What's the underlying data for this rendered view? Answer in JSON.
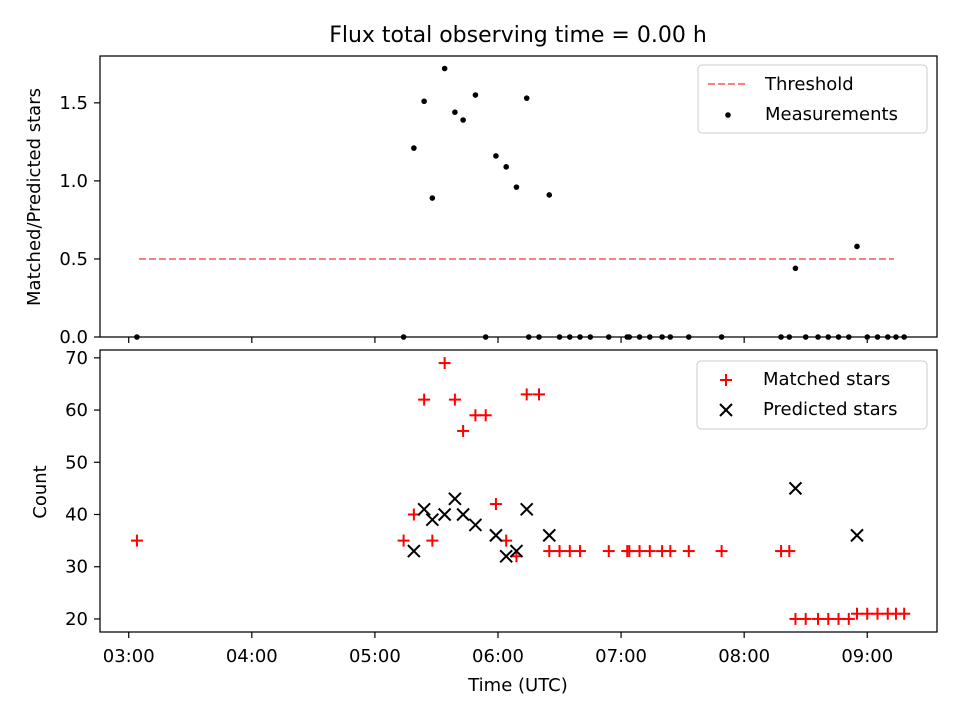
{
  "chart_data": [
    {
      "type": "scatter",
      "title": "Flux total observing time = 0.00 h",
      "ylabel": "Matched/Predicted stars",
      "xlim": [
        "02:46",
        "09:34"
      ],
      "ylim": [
        0,
        1.8
      ],
      "yticks": [
        0.0,
        0.5,
        1.0,
        1.5
      ],
      "ytick_labels": [
        "0.0",
        "0.5",
        "1.0",
        "1.5"
      ],
      "legend_position": "top-right",
      "series": [
        {
          "name": "Threshold",
          "kind": "line",
          "style": "dashed",
          "color": "#ff7f7f",
          "x": [
            "03:05",
            "09:13"
          ],
          "y": [
            0.5,
            0.5
          ]
        },
        {
          "name": "Measurements",
          "kind": "scatter",
          "color": "#000000",
          "marker": "dot",
          "x": [
            "03:04",
            "05:14",
            "05:19",
            "05:24",
            "05:28",
            "05:34",
            "05:39",
            "05:43",
            "05:49",
            "05:54",
            "05:59",
            "06:04",
            "06:09",
            "06:14",
            "06:15",
            "06:20",
            "06:25",
            "06:30",
            "06:35",
            "06:40",
            "06:45",
            "06:54",
            "07:03",
            "07:04",
            "07:09",
            "07:14",
            "07:20",
            "07:24",
            "07:33",
            "07:49",
            "08:18",
            "08:22",
            "08:25",
            "08:30",
            "08:36",
            "08:41",
            "08:46",
            "08:51",
            "08:55",
            "09:00",
            "09:05",
            "09:10",
            "09:14",
            "09:18"
          ],
          "y": [
            0,
            0,
            1.21,
            1.51,
            0.89,
            1.72,
            1.44,
            1.39,
            1.55,
            0,
            1.16,
            1.09,
            0.96,
            1.53,
            0,
            0,
            0.91,
            0,
            0,
            0,
            0,
            0,
            0,
            0,
            0,
            0,
            0,
            0,
            0,
            0,
            0,
            0,
            0.44,
            0,
            0,
            0,
            0,
            0,
            0.58,
            0,
            0,
            0,
            0,
            0
          ]
        }
      ]
    },
    {
      "type": "scatter",
      "xlabel": "Time (UTC)",
      "ylabel": "Count",
      "xlim": [
        "02:46",
        "09:34"
      ],
      "ylim": [
        17.5,
        71.5
      ],
      "yticks": [
        20,
        30,
        40,
        50,
        60,
        70
      ],
      "ytick_labels": [
        "20",
        "30",
        "40",
        "50",
        "60",
        "70"
      ],
      "xticks": [
        "03:00",
        "04:00",
        "05:00",
        "06:00",
        "07:00",
        "08:00",
        "09:00"
      ],
      "legend_position": "top-right",
      "series": [
        {
          "name": "Matched stars",
          "marker": "plus",
          "color": "#ff0000",
          "x": [
            "03:04",
            "05:14",
            "05:19",
            "05:24",
            "05:28",
            "05:34",
            "05:39",
            "05:43",
            "05:49",
            "05:54",
            "05:59",
            "06:04",
            "06:09",
            "06:14",
            "06:20",
            "06:25",
            "06:30",
            "06:35",
            "06:40",
            "06:54",
            "07:03",
            "07:04",
            "07:09",
            "07:14",
            "07:20",
            "07:24",
            "07:33",
            "07:49",
            "08:18",
            "08:22",
            "08:25",
            "08:30",
            "08:36",
            "08:41",
            "08:46",
            "08:51",
            "08:55",
            "09:00",
            "09:05",
            "09:10",
            "09:14",
            "09:18"
          ],
          "y": [
            35,
            35,
            40,
            62,
            35,
            69,
            62,
            56,
            59,
            59,
            42,
            35,
            32,
            63,
            63,
            33,
            33,
            33,
            33,
            33,
            33,
            33,
            33,
            33,
            33,
            33,
            33,
            33,
            33,
            33,
            20,
            20,
            20,
            20,
            20,
            20,
            21,
            21,
            21,
            21,
            21,
            21
          ]
        },
        {
          "name": "Predicted stars",
          "marker": "x",
          "color": "#000000",
          "x": [
            "05:19",
            "05:24",
            "05:28",
            "05:34",
            "05:39",
            "05:43",
            "05:49",
            "05:59",
            "06:04",
            "06:09",
            "06:14",
            "06:25",
            "08:25",
            "08:55"
          ],
          "y": [
            33,
            41,
            39,
            40,
            43,
            40,
            38,
            36,
            32,
            33,
            41,
            36,
            45,
            36
          ]
        }
      ]
    }
  ]
}
